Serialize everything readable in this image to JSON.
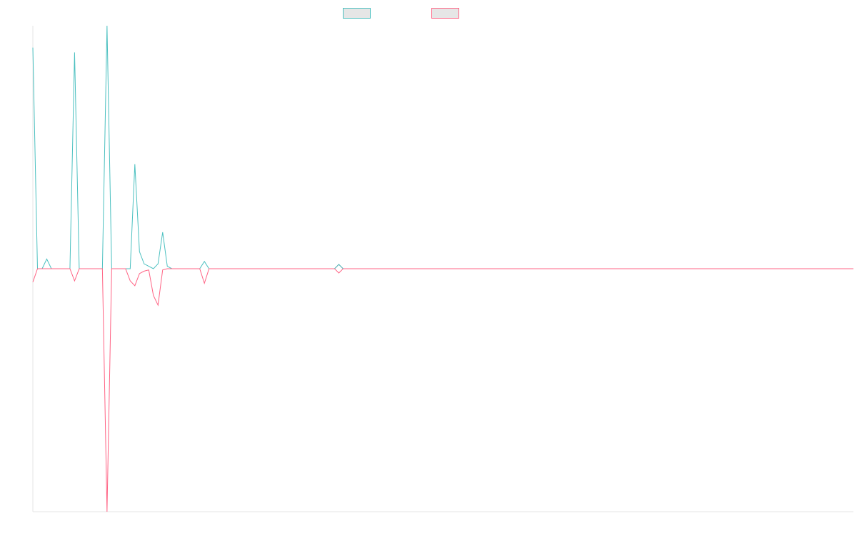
{
  "chart_data": {
    "type": "line",
    "title": "",
    "xlabel": "",
    "ylabel": "",
    "ylim": [
      -1.0,
      1.0
    ],
    "grid": false,
    "legend_position": "top",
    "series": [
      {
        "color": "#4bc0c0",
        "values": [
          0.91,
          0.0,
          0.0,
          0.04,
          0.0,
          0.0,
          0.0,
          0.0,
          0.0,
          0.89,
          0.0,
          0.0,
          0.0,
          0.0,
          0.0,
          0.0,
          1.0,
          0.0,
          0.0,
          0.0,
          0.0,
          0.0,
          0.43,
          0.07,
          0.02,
          0.01,
          0.0,
          0.02,
          0.15,
          0.01,
          0.0,
          0.0,
          0.0,
          0.0,
          0.0,
          0.0,
          0.0,
          0.03,
          0.0,
          0.0,
          0.0,
          0.0,
          0.0,
          0.0,
          0.0,
          0.0,
          0.0,
          0.0,
          0.0,
          0.0,
          0.0,
          0.0,
          0.0,
          0.0,
          0.0,
          0.0,
          0.0,
          0.0,
          0.0,
          0.0,
          0.0,
          0.0,
          0.0,
          0.0,
          0.0,
          0.0,
          0.0,
          0.0,
          0.0,
          0.0,
          0.0,
          0.0,
          0.0,
          0.0,
          0.0,
          0.0,
          0.0,
          0.0,
          0.0,
          0.0,
          0.0,
          0.0,
          0.0,
          0.0,
          0.0,
          0.0,
          0.0,
          0.0,
          0.0,
          0.0,
          0.0,
          0.0,
          0.0,
          0.0,
          0.0,
          0.0,
          0.0,
          0.0,
          0.0,
          0.0,
          0.0,
          0.0,
          0.0,
          0.0,
          0.0,
          0.0,
          0.0,
          0.0,
          0.0,
          0.0,
          0.0,
          0.0,
          0.0,
          0.0,
          0.0,
          0.0,
          0.0,
          0.0,
          0.0,
          0.0,
          0.0,
          0.0,
          0.0,
          0.0,
          0.0,
          0.0,
          0.0,
          0.0,
          0.0,
          0.0,
          0.0,
          0.0,
          0.0,
          0.0,
          0.0,
          0.0,
          0.0,
          0.0,
          0.0,
          0.0,
          0.0,
          0.0,
          0.0,
          0.0,
          0.0,
          0.0,
          0.0,
          0.0,
          0.0,
          0.0,
          0.0,
          0.0,
          0.0,
          0.0,
          0.0,
          0.0,
          0.0,
          0.0,
          0.0,
          0.0,
          0.0,
          0.0,
          0.0,
          0.0,
          0.0,
          0.0,
          0.0,
          0.0,
          0.0,
          0.0,
          0.0,
          0.0,
          0.0,
          0.0,
          0.0,
          0.0,
          0.0,
          0.0
        ]
      },
      {
        "color": "#ff6384",
        "values": [
          -0.055,
          0.0,
          0.0,
          0.0,
          0.0,
          0.0,
          0.0,
          0.0,
          0.0,
          -0.05,
          0.0,
          0.0,
          0.0,
          0.0,
          0.0,
          0.0,
          -1.0,
          0.0,
          0.0,
          0.0,
          0.0,
          -0.05,
          -0.07,
          -0.02,
          -0.01,
          -0.005,
          -0.11,
          -0.15,
          -0.005,
          0.0,
          0.0,
          0.0,
          0.0,
          0.0,
          0.0,
          0.0,
          0.0,
          -0.06,
          0.0,
          0.0,
          0.0,
          0.0,
          0.0,
          0.0,
          0.0,
          0.0,
          0.0,
          0.0,
          0.0,
          0.0,
          0.0,
          0.0,
          0.0,
          0.0,
          0.0,
          0.0,
          0.0,
          0.0,
          0.0,
          0.0,
          0.0,
          0.0,
          0.0,
          0.0,
          0.0,
          0.0,
          0.0,
          0.0,
          0.0,
          0.0,
          0.0,
          0.0,
          0.0,
          0.0,
          0.0,
          0.0,
          0.0,
          0.0,
          0.0,
          0.0,
          0.0,
          0.0,
          0.0,
          0.0,
          0.0,
          0.0,
          0.0,
          0.0,
          0.0,
          0.0,
          0.0,
          0.0,
          0.0,
          0.0,
          0.0,
          0.0,
          0.0,
          0.0,
          0.0,
          0.0,
          0.0,
          0.0,
          0.0,
          0.0,
          0.0,
          0.0,
          0.0,
          0.0,
          0.0,
          0.0,
          0.0,
          0.0,
          0.0,
          0.0,
          0.0,
          0.0,
          0.0,
          0.0,
          0.0,
          0.0,
          0.0,
          0.0,
          0.0,
          0.0,
          0.0,
          0.0,
          0.0,
          0.0,
          0.0,
          0.0,
          0.0,
          0.0,
          0.0,
          0.0,
          0.0,
          0.0,
          0.0,
          0.0,
          0.0,
          0.0,
          0.0,
          0.0,
          0.0,
          0.0,
          0.0,
          0.0,
          0.0,
          0.0,
          0.0,
          0.0,
          0.0,
          0.0,
          0.0,
          0.0,
          0.0,
          0.0,
          0.0,
          0.0,
          0.0,
          0.0,
          0.0,
          0.0,
          0.0,
          0.0,
          0.0,
          0.0,
          0.0,
          0.0,
          0.0,
          0.0,
          0.0,
          0.0,
          0.0,
          0.0,
          0.0,
          0.0,
          0.0,
          0.0
        ]
      }
    ],
    "marker": {
      "index": 66,
      "value": 0.0,
      "shape": "diamond"
    }
  },
  "colors": {
    "series_teal": "#4bc0c0",
    "series_red": "#ff6384",
    "swatch_fill": "#e6e6e6",
    "axis": "#e5e5e5"
  }
}
